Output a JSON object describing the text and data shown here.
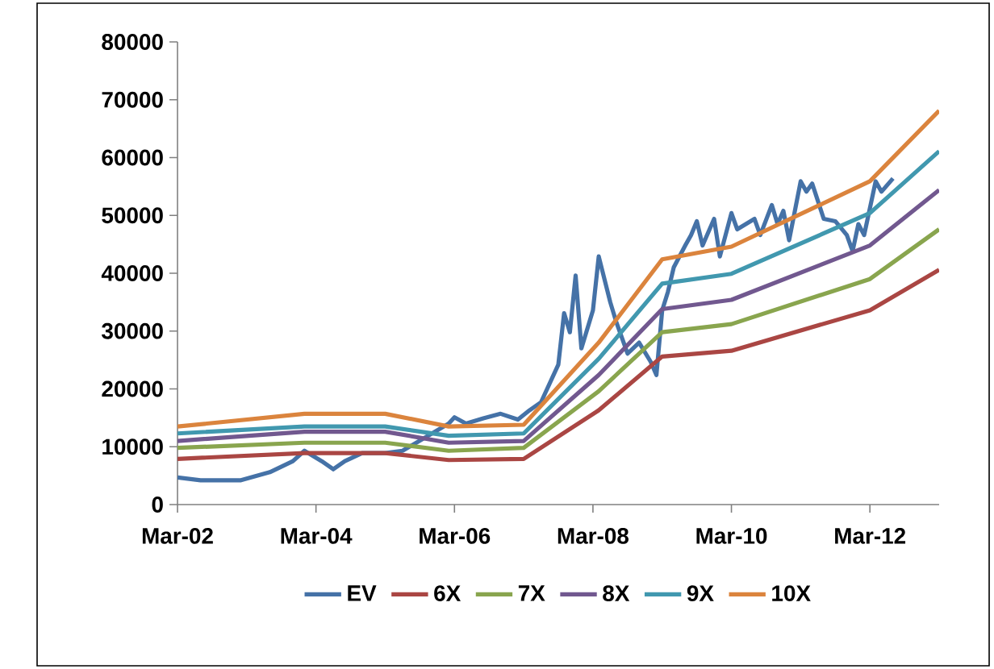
{
  "chart_data": {
    "type": "line",
    "marker": "none",
    "line_style": "solid",
    "legend": "bottom",
    "xlim": [
      "2002-03",
      "2013-03"
    ],
    "ylim": [
      0,
      80000
    ],
    "xticks": [
      {
        "value": "2002-03",
        "label": "Mar-02"
      },
      {
        "value": "2004-03",
        "label": "Mar-04"
      },
      {
        "value": "2006-03",
        "label": "Mar-06"
      },
      {
        "value": "2008-03",
        "label": "Mar-08"
      },
      {
        "value": "2010-03",
        "label": "Mar-10"
      },
      {
        "value": "2012-03",
        "label": "Mar-12"
      }
    ],
    "yticks": [
      0,
      10000,
      20000,
      30000,
      40000,
      50000,
      60000,
      70000,
      80000
    ],
    "x": [
      "2002-03",
      "2004-01",
      "2005-03",
      "2006-02",
      "2007-03",
      "2008-04",
      "2009-03",
      "2010-03",
      "2012-03",
      "2013-03"
    ],
    "series": [
      {
        "name": "EV",
        "color": "#4572a7",
        "x": [
          "2002-03",
          "2002-07",
          "2003-02",
          "2003-07",
          "2003-11",
          "2004-01",
          "2004-04",
          "2004-06",
          "2004-08",
          "2004-11",
          "2005-03",
          "2005-06",
          "2006-02",
          "2006-03",
          "2006-05",
          "2006-08",
          "2006-11",
          "2007-02",
          "2007-04",
          "2007-06",
          "2007-09",
          "2007-10",
          "2007-11",
          "2007-12",
          "2008-01",
          "2008-03",
          "2008-04",
          "2008-06",
          "2008-07",
          "2008-09",
          "2008-11",
          "2009-01",
          "2009-02",
          "2009-03",
          "2009-04",
          "2009-05",
          "2009-07",
          "2009-08",
          "2009-09",
          "2009-10",
          "2009-12",
          "2010-01",
          "2010-03",
          "2010-04",
          "2010-07",
          "2010-08",
          "2010-10",
          "2010-11",
          "2010-12",
          "2011-01",
          "2011-03",
          "2011-04",
          "2011-05",
          "2011-07",
          "2011-09",
          "2011-11",
          "2011-12",
          "2012-01",
          "2012-02",
          "2012-04",
          "2012-05",
          "2012-07"
        ],
        "values": [
          4700,
          4200,
          4200,
          5600,
          7500,
          9300,
          7500,
          6100,
          7500,
          8900,
          8900,
          9300,
          14000,
          15100,
          14000,
          14900,
          15700,
          14700,
          16300,
          17700,
          24200,
          33100,
          29800,
          39600,
          27000,
          33600,
          42900,
          35000,
          31700,
          26100,
          28000,
          24700,
          22400,
          33600,
          36800,
          41000,
          44800,
          46600,
          49000,
          44800,
          49400,
          42900,
          50400,
          47600,
          49400,
          46600,
          51800,
          48500,
          50800,
          45700,
          55900,
          54100,
          55500,
          49400,
          49000,
          46600,
          43800,
          48500,
          46600,
          55900,
          54100,
          56400
        ]
      },
      {
        "name": "6X",
        "color": "#aa4643",
        "values": [
          7900,
          8900,
          8900,
          7700,
          7900,
          16300,
          25600,
          26600,
          33600,
          40600
        ]
      },
      {
        "name": "7X",
        "color": "#89a54e",
        "values": [
          9800,
          10700,
          10700,
          9300,
          9800,
          19600,
          29800,
          31200,
          39000,
          47600
        ]
      },
      {
        "name": "8X",
        "color": "#71588f",
        "values": [
          11000,
          12600,
          12600,
          10700,
          11000,
          22400,
          33800,
          35400,
          44800,
          54400
        ]
      },
      {
        "name": "9X",
        "color": "#4198af",
        "values": [
          12300,
          13500,
          13500,
          11900,
          12300,
          25200,
          38200,
          39900,
          50400,
          61100
        ]
      },
      {
        "name": "10X",
        "color": "#db843d",
        "values": [
          13500,
          15700,
          15700,
          13500,
          13800,
          28000,
          42400,
          44600,
          55900,
          68100
        ]
      }
    ]
  }
}
